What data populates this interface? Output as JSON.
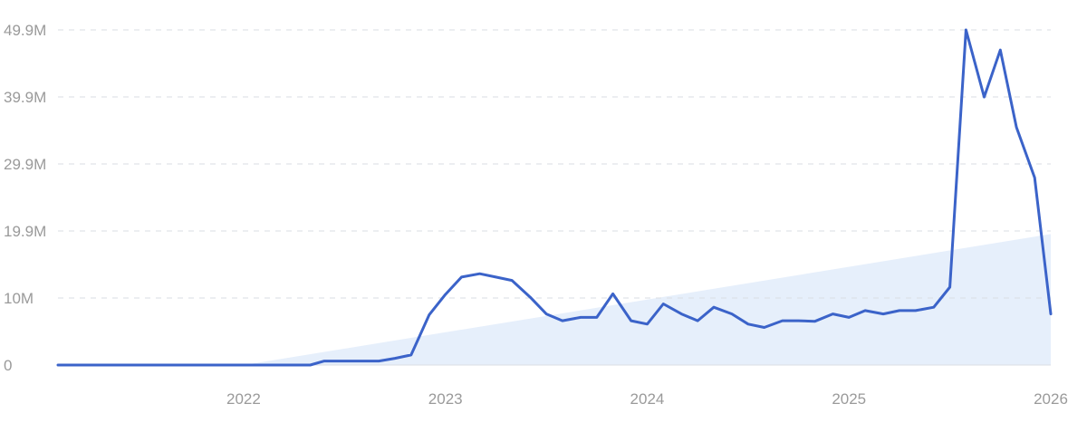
{
  "chart_data": {
    "type": "line",
    "y_ticks": [
      "0",
      "10M",
      "19.9M",
      "29.9M",
      "39.9M",
      "49.9M"
    ],
    "y_tick_values": [
      0,
      9.98,
      19.96,
      29.94,
      39.92,
      49.9
    ],
    "x_ticks": [
      "2022",
      "2023",
      "2024",
      "2025",
      "2026"
    ],
    "x_tick_values": [
      2022,
      2023,
      2024,
      2025,
      2026
    ],
    "xlim": [
      2021.08,
      2026.0
    ],
    "ylim": [
      0,
      49.9
    ],
    "grid": true,
    "series": [
      {
        "x": [
          2021.08,
          2022.0,
          2022.33,
          2022.4,
          2022.5,
          2022.67,
          2022.75,
          2022.83,
          2022.92,
          2023.0,
          2023.08,
          2023.17,
          2023.25,
          2023.33,
          2023.42,
          2023.5,
          2023.58,
          2023.67,
          2023.75,
          2023.83,
          2023.92,
          2024.0,
          2024.08,
          2024.17,
          2024.25,
          2024.33,
          2024.42,
          2024.5,
          2024.58,
          2024.67,
          2024.75,
          2024.83,
          2024.92,
          2025.0,
          2025.08,
          2025.17,
          2025.25,
          2025.33,
          2025.42,
          2025.5,
          2025.58,
          2025.67,
          2025.75,
          2025.83,
          2025.92,
          2026.0
        ],
        "values": [
          0,
          0,
          0,
          0.6,
          0.6,
          0.6,
          1.0,
          1.5,
          7.5,
          10.5,
          13.1,
          13.6,
          13.1,
          12.6,
          10.1,
          7.6,
          6.6,
          7.1,
          7.1,
          10.6,
          6.6,
          6.1,
          9.1,
          7.6,
          6.6,
          8.6,
          7.6,
          6.1,
          5.6,
          6.6,
          6.6,
          6.5,
          7.6,
          7.1,
          8.1,
          7.6,
          8.1,
          8.1,
          8.6,
          11.6,
          49.9,
          39.9,
          46.9,
          35.4,
          27.9,
          7.6
        ]
      }
    ],
    "trend_area": {
      "x": [
        2022.0,
        2026.0
      ],
      "values": [
        0,
        19.5
      ]
    }
  }
}
